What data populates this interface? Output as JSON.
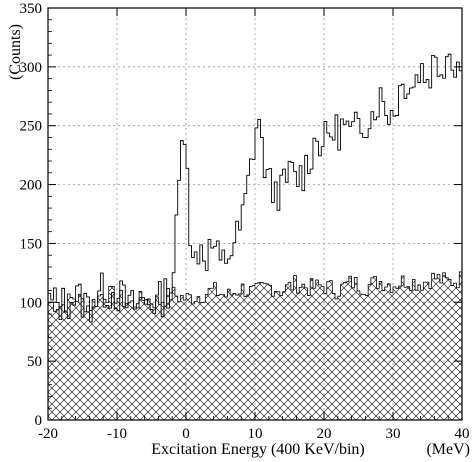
{
  "chart_data": {
    "type": "histogram",
    "title": "",
    "xlabel": "Excitation Energy (400 KeV/bin)",
    "ylabel": "(Counts)",
    "x_unit_label": "(MeV)",
    "xlim": [
      -20,
      40
    ],
    "ylim": [
      0,
      350
    ],
    "bin_width": 0.4,
    "grid": true,
    "x_ticks": [
      -20,
      -10,
      0,
      10,
      20,
      30,
      40
    ],
    "x_tick_labels": [
      "-20",
      "-10",
      "0",
      "10",
      "20",
      "30",
      "40"
    ],
    "y_ticks": [
      0,
      50,
      100,
      150,
      200,
      250,
      300,
      350
    ],
    "y_tick_labels": [
      "0",
      "50",
      "100",
      "150",
      "200",
      "250",
      "300",
      "350"
    ],
    "series": [
      {
        "role": "total",
        "style": "step-outline",
        "points": [
          [
            -20,
            100
          ],
          [
            -18,
            98
          ],
          [
            -16,
            105
          ],
          [
            -14,
            97
          ],
          [
            -12,
            110
          ],
          [
            -10,
            108
          ],
          [
            -8,
            95
          ],
          [
            -6,
            102
          ],
          [
            -4,
            100
          ],
          [
            -2,
            115
          ],
          [
            -1.5,
            150
          ],
          [
            -1,
            200
          ],
          [
            -0.5,
            240
          ],
          [
            0,
            258
          ],
          [
            0.5,
            170
          ],
          [
            1,
            130
          ],
          [
            2,
            150
          ],
          [
            3,
            140
          ],
          [
            4,
            150
          ],
          [
            5,
            130
          ],
          [
            6,
            140
          ],
          [
            7,
            150
          ],
          [
            8,
            165
          ],
          [
            9,
            200
          ],
          [
            10,
            240
          ],
          [
            10.5,
            262
          ],
          [
            11,
            230
          ],
          [
            12,
            200
          ],
          [
            13,
            195
          ],
          [
            14,
            195
          ],
          [
            15,
            210
          ],
          [
            16,
            205
          ],
          [
            17,
            210
          ],
          [
            18,
            225
          ],
          [
            19,
            240
          ],
          [
            20,
            235
          ],
          [
            21,
            245
          ],
          [
            22,
            245
          ],
          [
            23,
            250
          ],
          [
            24,
            240
          ],
          [
            25,
            250
          ],
          [
            26,
            255
          ],
          [
            27,
            260
          ],
          [
            28,
            275
          ],
          [
            29,
            265
          ],
          [
            30,
            260
          ],
          [
            31,
            280
          ],
          [
            32,
            290
          ],
          [
            33,
            285
          ],
          [
            34,
            300
          ],
          [
            35,
            290
          ],
          [
            36,
            305
          ],
          [
            37,
            300
          ],
          [
            38,
            315
          ],
          [
            39,
            305
          ],
          [
            40,
            300
          ]
        ]
      },
      {
        "role": "background",
        "style": "cross-hatched",
        "points": [
          [
            -20,
            100
          ],
          [
            -18,
            97
          ],
          [
            -16,
            105
          ],
          [
            -14,
            96
          ],
          [
            -12,
            108
          ],
          [
            -10,
            105
          ],
          [
            -8,
            98
          ],
          [
            -6,
            103
          ],
          [
            -4,
            100
          ],
          [
            -2,
            107
          ],
          [
            0,
            103
          ],
          [
            2,
            106
          ],
          [
            4,
            110
          ],
          [
            6,
            105
          ],
          [
            8,
            112
          ],
          [
            10,
            108
          ],
          [
            12,
            114
          ],
          [
            14,
            110
          ],
          [
            16,
            116
          ],
          [
            18,
            112
          ],
          [
            20,
            114
          ],
          [
            22,
            110
          ],
          [
            24,
            117
          ],
          [
            26,
            113
          ],
          [
            28,
            118
          ],
          [
            30,
            115
          ],
          [
            32,
            119
          ],
          [
            34,
            116
          ],
          [
            36,
            121
          ],
          [
            38,
            117
          ],
          [
            40,
            120
          ]
        ]
      }
    ]
  }
}
